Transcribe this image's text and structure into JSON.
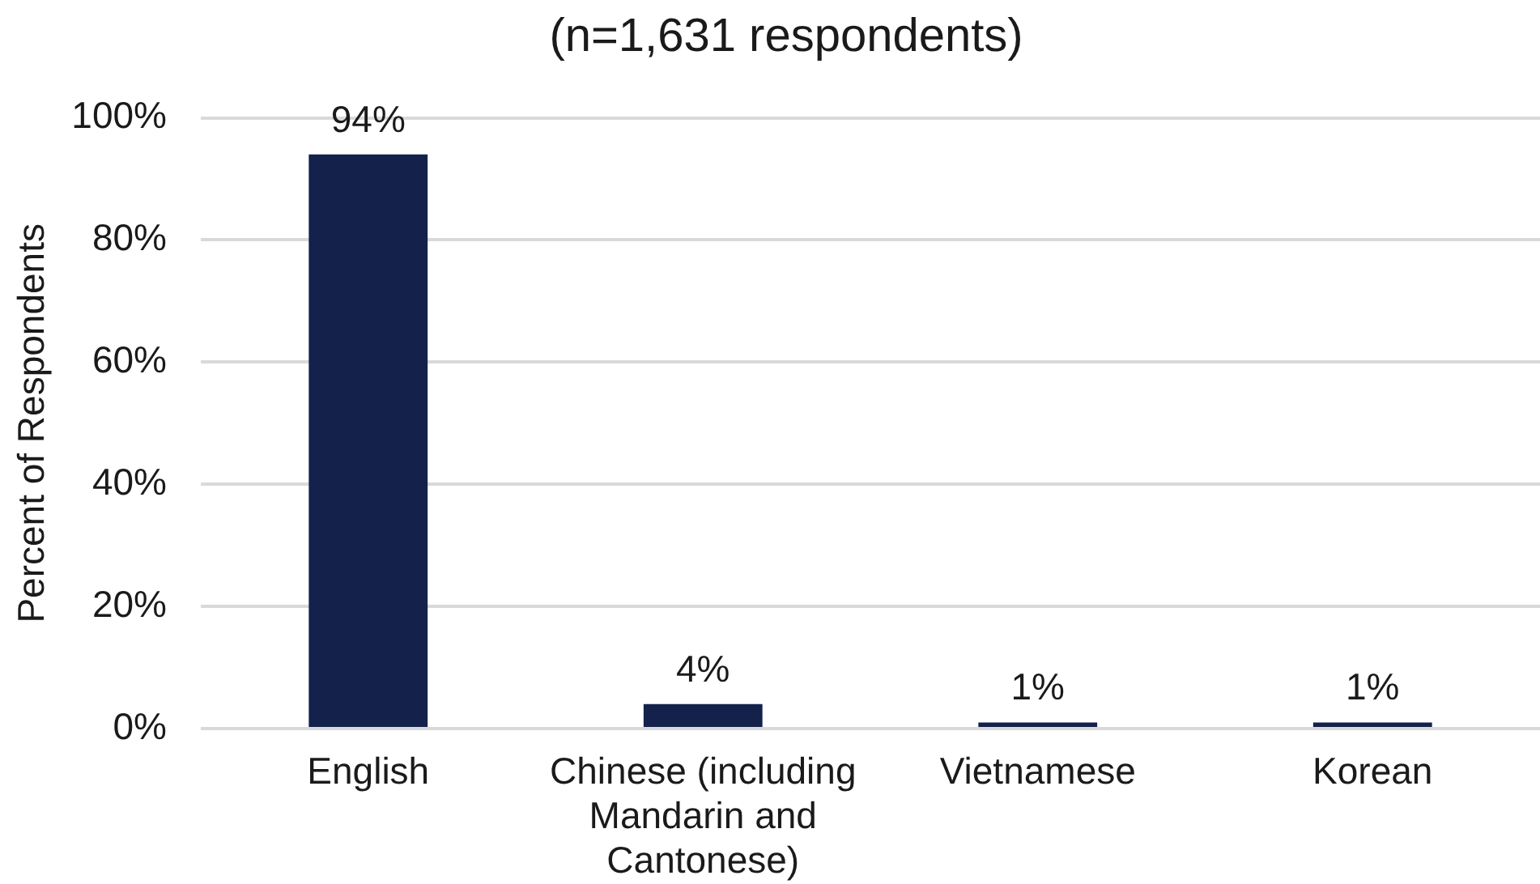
{
  "chart_data": {
    "type": "bar",
    "title": "(n=1,631 respondents)",
    "ylabel": "Percent of Respondents",
    "categories": [
      "English",
      "Chinese (including Mandarin and Cantonese)",
      "Vietnamese",
      "Korean"
    ],
    "values": [
      94,
      4,
      1,
      1
    ],
    "value_labels": [
      "94%",
      "4%",
      "1%",
      "1%"
    ],
    "color": "#13214b",
    "ylim": [
      0,
      100
    ],
    "yticks": [
      {
        "value": 0,
        "label": "0%"
      },
      {
        "value": 20,
        "label": "20%"
      },
      {
        "value": 40,
        "label": "40%"
      },
      {
        "value": 60,
        "label": "60%"
      },
      {
        "value": 80,
        "label": "80%"
      },
      {
        "value": 100,
        "label": "100%"
      }
    ],
    "grid": "y"
  }
}
